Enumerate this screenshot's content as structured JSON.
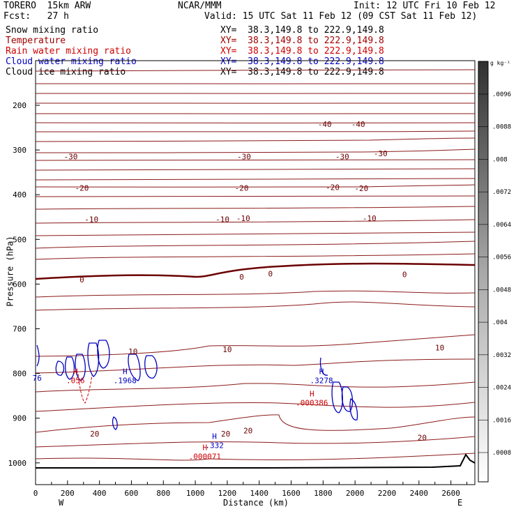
{
  "header": {
    "model": "TORERO  15km ARW",
    "source": "NCAR/MMM",
    "init": "Init: 12 UTC Fri 10 Feb 12",
    "fcst": "Fcst:   27 h",
    "valid": "Valid: 15 UTC Sat 11 Feb 12 (09 CST Sat 11 Feb 12)"
  },
  "legend": {
    "fields": [
      {
        "name": "Snow mixing ratio",
        "xy": "XY=  38.3,149.8 to 222.9,149.8",
        "color": "#000000"
      },
      {
        "name": "Temperature",
        "xy": "XY=  38.3,149.8 to 222.9,149.8",
        "color": "#a00000"
      },
      {
        "name": "Rain water mixing ratio",
        "xy": "XY=  38.3,149.8 to 222.9,149.8",
        "color": "#d00000"
      },
      {
        "name": "Cloud water mixing ratio",
        "xy": "XY=  38.3,149.8 to 222.9,149.8",
        "color": "#0000c0"
      },
      {
        "name": "Cloud ice mixing ratio",
        "xy": "XY=  38.3,149.8 to 222.9,149.8",
        "color": "#000000"
      }
    ]
  },
  "chart_data": {
    "type": "contour-cross-section",
    "xlabel": "Distance (km)",
    "ylabel": "Pressure (hPa)",
    "xlim": [
      0,
      2750
    ],
    "x_ticks": [
      "0",
      "200",
      "400",
      "600",
      "800",
      "1000",
      "1200",
      "1400",
      "1600",
      "1800",
      "2000",
      "2200",
      "2400",
      "2600"
    ],
    "y_ticks": [
      "200",
      "300",
      "400",
      "500",
      "600",
      "700",
      "800",
      "900",
      "1000"
    ],
    "x_end_labels": [
      "W",
      "E"
    ],
    "colorbar": {
      "unit": "g kg⁻¹",
      "ticks": [
        ".0096",
        ".0088",
        ".008",
        ".0072",
        ".0064",
        ".0056",
        ".0048",
        ".004",
        ".0032",
        ".0024",
        ".0016",
        ".0008"
      ]
    },
    "temperature_contour_labels": [
      {
        "value": "-40",
        "x": 1810,
        "p": 242
      },
      {
        "value": "-40",
        "x": 2020,
        "p": 242
      },
      {
        "value": "-30",
        "x": 220,
        "p": 315
      },
      {
        "value": "-30",
        "x": 1305,
        "p": 315
      },
      {
        "value": "-30",
        "x": 1920,
        "p": 315
      },
      {
        "value": "-30",
        "x": 2160,
        "p": 308
      },
      {
        "value": "-20",
        "x": 290,
        "p": 385
      },
      {
        "value": "-20",
        "x": 1290,
        "p": 385
      },
      {
        "value": "-20",
        "x": 1860,
        "p": 383
      },
      {
        "value": "-20",
        "x": 2040,
        "p": 386
      },
      {
        "value": "-10",
        "x": 350,
        "p": 455
      },
      {
        "value": "-10",
        "x": 1170,
        "p": 455
      },
      {
        "value": "-10",
        "x": 1300,
        "p": 453
      },
      {
        "value": "-10",
        "x": 2090,
        "p": 453
      },
      {
        "value": "0",
        "x": 290,
        "p": 590
      },
      {
        "value": "0",
        "x": 1290,
        "p": 584
      },
      {
        "value": "0",
        "x": 1470,
        "p": 577
      },
      {
        "value": "0",
        "x": 2310,
        "p": 578
      },
      {
        "value": "10",
        "x": 610,
        "p": 751
      },
      {
        "value": "10",
        "x": 1200,
        "p": 746
      },
      {
        "value": "10",
        "x": 2530,
        "p": 742
      },
      {
        "value": "20",
        "x": 370,
        "p": 935
      },
      {
        "value": "20",
        "x": 1190,
        "p": 935
      },
      {
        "value": "20",
        "x": 1330,
        "p": 928
      },
      {
        "value": "20",
        "x": 2420,
        "p": 943
      }
    ],
    "extrema_labels": [
      {
        "mark": "H",
        "value": ".056",
        "x": 250,
        "p": 820,
        "color": "#d00000"
      },
      {
        "mark": "H",
        "value": ".1968",
        "x": 560,
        "p": 820,
        "color": "#0000c0"
      },
      {
        "mark": "H",
        "value": ".3278",
        "x": 1790,
        "p": 820,
        "color": "#0000c0"
      },
      {
        "mark": "H",
        "value": ".000386",
        "x": 1730,
        "p": 870,
        "color": "#d00000"
      },
      {
        "mark": "H",
        "value": ".332",
        "x": 1120,
        "p": 965,
        "color": "#0000c0"
      },
      {
        "mark": "H",
        "value": ".000071",
        "x": 1060,
        "p": 990,
        "color": "#d00000"
      },
      {
        "mark": "",
        "value": "76",
        "x": 10,
        "p": 815,
        "color": "#0000c0"
      }
    ]
  }
}
